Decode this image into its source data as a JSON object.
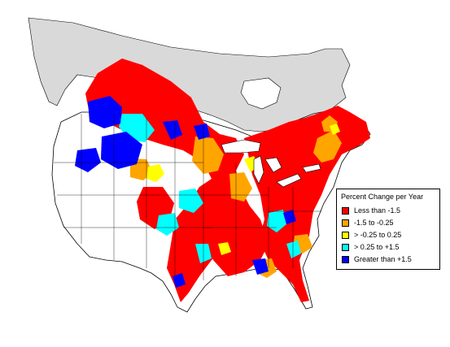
{
  "legend": {
    "title": "Percent Change per Year",
    "items": [
      {
        "label": "Less than -1.5",
        "color": "#ff0000"
      },
      {
        "label": "-1.5 to -0.25",
        "color": "#ffa500"
      },
      {
        "label": "> -0.25 to 0.25",
        "color": "#ffff00"
      },
      {
        "label": "> 0.25 to +1.5",
        "color": "#00ffff"
      },
      {
        "label": "Greater than +1.5",
        "color": "#0000ff"
      }
    ]
  },
  "colors": {
    "no_data_region": "#d9d9d9",
    "outline": "#000000",
    "background": "#ffffff"
  }
}
